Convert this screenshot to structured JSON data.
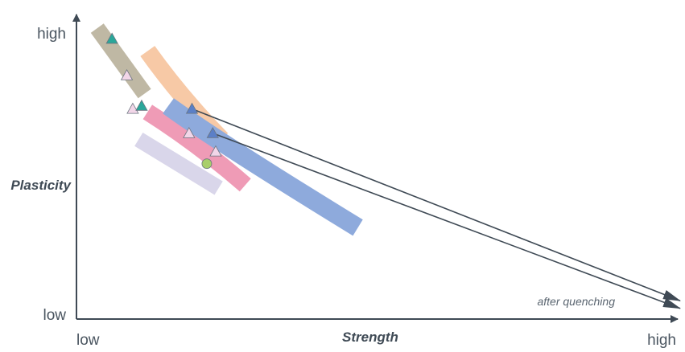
{
  "chart_data": {
    "type": "scatter",
    "title": "",
    "xlabel": "Strength",
    "ylabel": "Plasticity",
    "x_ticks": [
      "low",
      "high"
    ],
    "y_ticks": [
      "low",
      "high"
    ],
    "xlim": [
      0,
      10
    ],
    "ylim": [
      0,
      10
    ],
    "grid": false,
    "annotations": [
      {
        "text": "after quenching"
      }
    ],
    "regions": [
      {
        "color": "#bfb8a4",
        "points": [
          [
            0.35,
            9.55
          ],
          [
            1.15,
            7.4
          ]
        ],
        "width": 0.52
      },
      {
        "color": "#f7c9a6",
        "points": [
          [
            1.2,
            8.8
          ],
          [
            1.75,
            7.3
          ],
          [
            2.45,
            5.9
          ]
        ],
        "width": 0.58
      },
      {
        "color": "#d9d6ea",
        "points": [
          [
            1.05,
            5.9
          ],
          [
            2.4,
            4.3
          ]
        ],
        "width": 0.52
      },
      {
        "color": "#ef9bb6",
        "points": [
          [
            1.2,
            6.8
          ],
          [
            2.05,
            5.75
          ],
          [
            2.85,
            4.4
          ]
        ],
        "width": 0.56
      },
      {
        "color": "#8eaadc",
        "points": [
          [
            1.55,
            7.0
          ],
          [
            2.4,
            5.8
          ],
          [
            4.75,
            3.0
          ]
        ],
        "width": 0.62
      }
    ],
    "markers": [
      {
        "shape": "triangle",
        "color": "#2aa79a",
        "x": 0.6,
        "y": 9.2
      },
      {
        "shape": "triangle",
        "color": "#f2d6e8",
        "x": 0.85,
        "y": 8.0
      },
      {
        "shape": "triangle",
        "color": "#f2d6e8",
        "x": 0.95,
        "y": 6.9
      },
      {
        "shape": "triangle",
        "color": "#2aa79a",
        "x": 1.1,
        "y": 7.0
      },
      {
        "shape": "triangle",
        "color": "#5b7fc7",
        "x": 1.95,
        "y": 6.9
      },
      {
        "shape": "triangle",
        "color": "#f2d6e8",
        "x": 1.9,
        "y": 6.1
      },
      {
        "shape": "triangle",
        "color": "#5b7fc7",
        "x": 2.3,
        "y": 6.1
      },
      {
        "shape": "triangle",
        "color": "#f2d6e8",
        "x": 2.35,
        "y": 5.5
      },
      {
        "shape": "circle",
        "color": "#a9cf6a",
        "x": 2.2,
        "y": 5.1
      }
    ],
    "arrows": [
      {
        "from": [
          1.95,
          6.9
        ],
        "to": [
          10.3,
          0.6
        ]
      },
      {
        "from": [
          2.3,
          6.1
        ],
        "to": [
          10.3,
          0.35
        ]
      }
    ]
  }
}
